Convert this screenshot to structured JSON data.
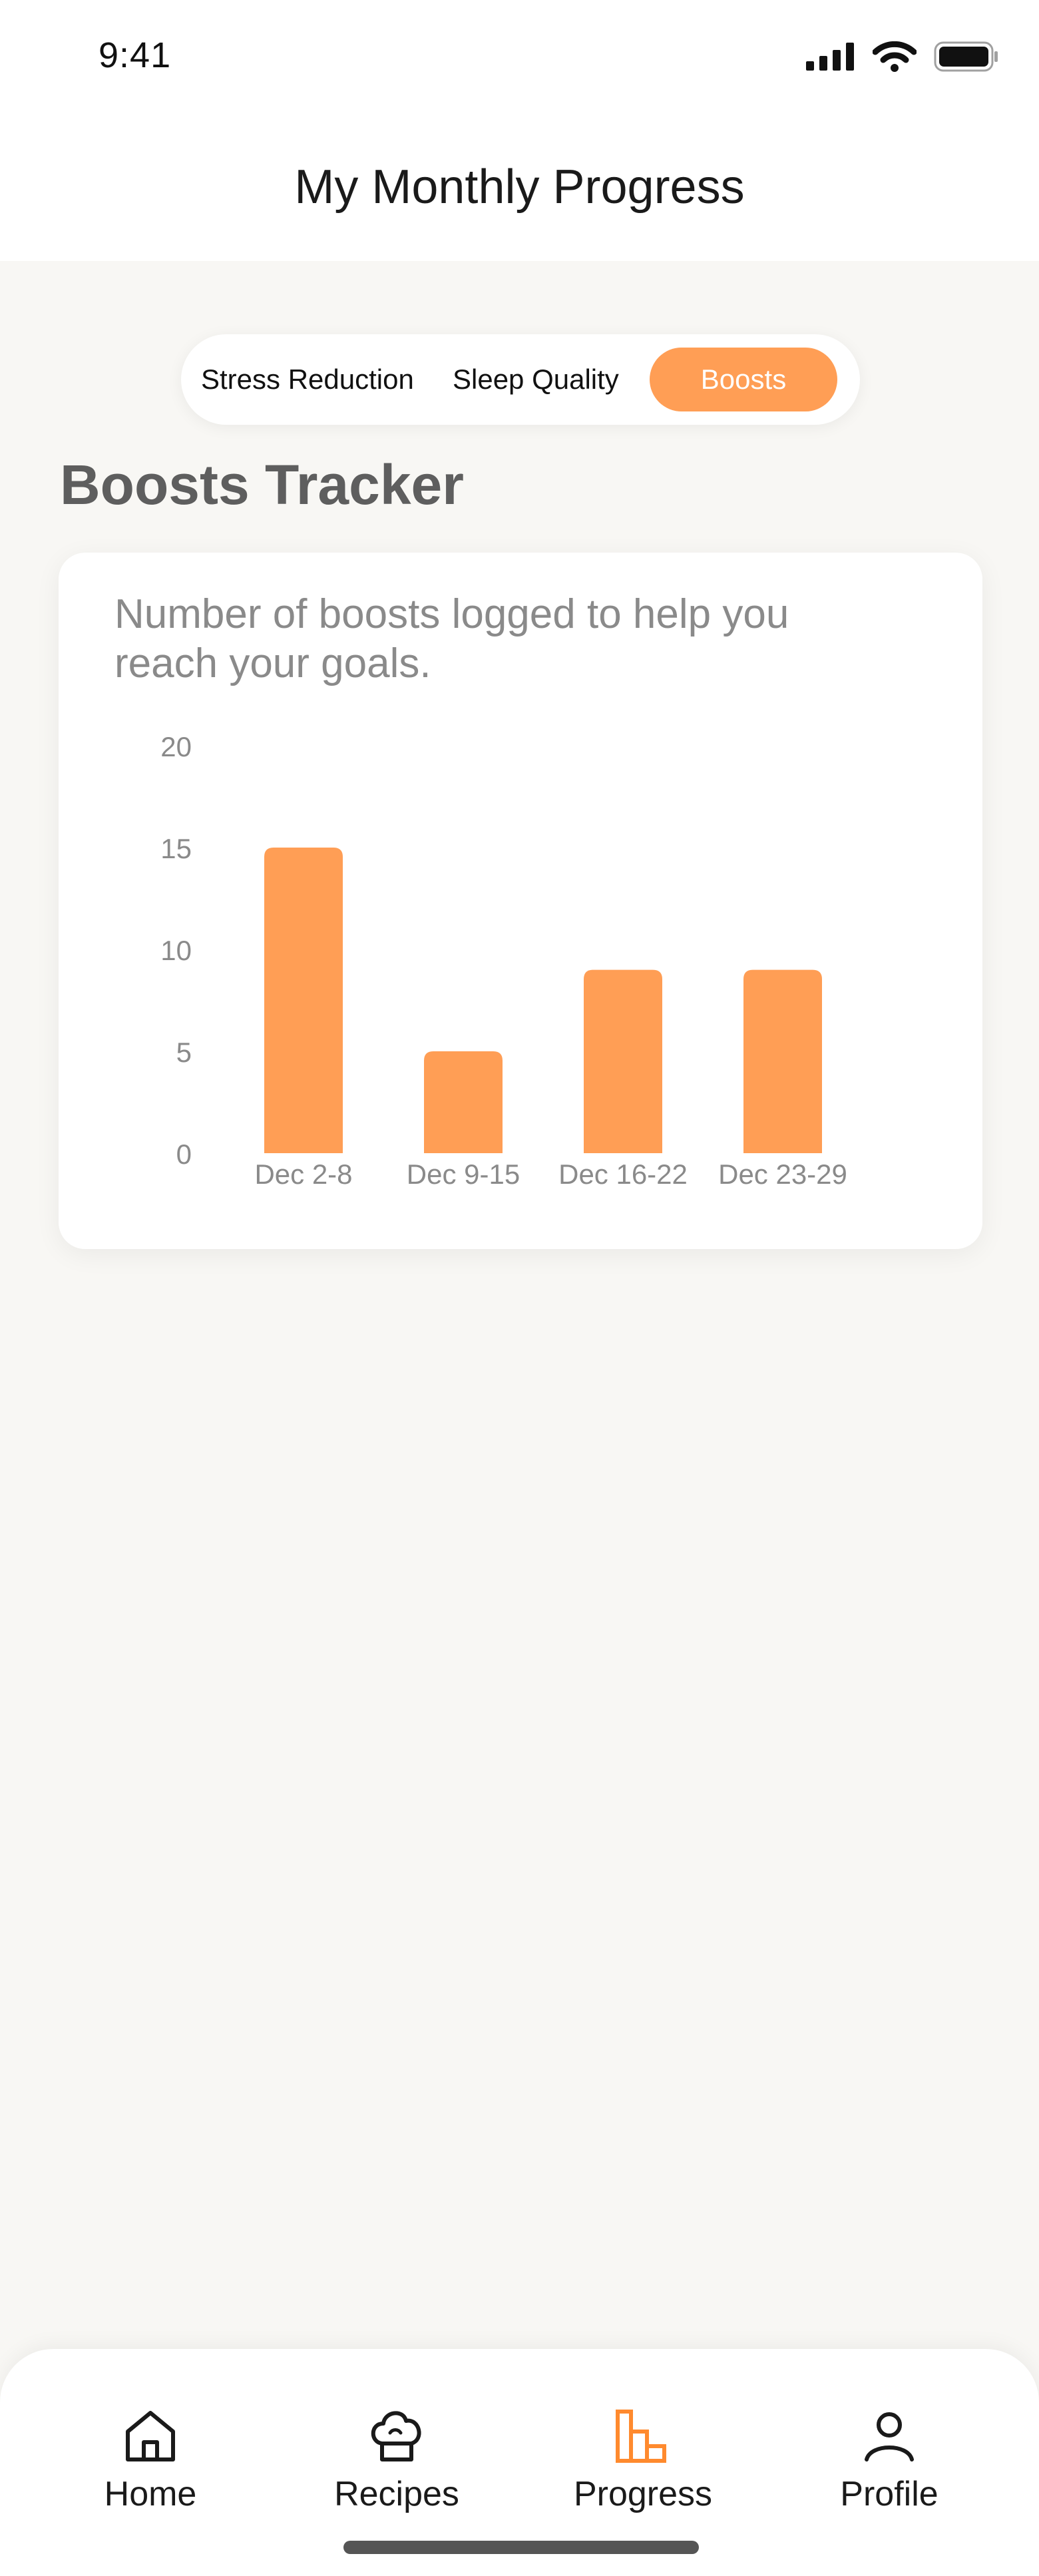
{
  "status_bar": {
    "time": "9:41"
  },
  "header": {
    "title": "My Monthly Progress"
  },
  "segments": [
    {
      "label": "Stress Reduction",
      "selected": false
    },
    {
      "label": "Sleep Quality",
      "selected": false
    },
    {
      "label": "Boosts",
      "selected": true
    }
  ],
  "section": {
    "title": "Boosts Tracker"
  },
  "card": {
    "description": "Number of boosts logged to help you reach your goals."
  },
  "chart_data": {
    "type": "bar",
    "categories": [
      "Dec 2-8",
      "Dec 9-15",
      "Dec 16-22",
      "Dec 23-29"
    ],
    "values": [
      15,
      5,
      9,
      9
    ],
    "yticks": [
      0,
      5,
      10,
      15,
      20
    ],
    "ylim": [
      0,
      20
    ],
    "grid": false,
    "bar_color": "#ff9e55"
  },
  "tab_bar": {
    "items": [
      {
        "label": "Home",
        "icon": "home-icon",
        "active": false
      },
      {
        "label": "Recipes",
        "icon": "chef-hat-icon",
        "active": false
      },
      {
        "label": "Progress",
        "icon": "bar-chart-icon",
        "active": true
      },
      {
        "label": "Profile",
        "icon": "person-icon",
        "active": false
      }
    ]
  },
  "colors": {
    "accent": "#ff9e55",
    "background": "#f8f7f4",
    "text": "#1a1a1a",
    "muted": "#8a8a8a"
  }
}
